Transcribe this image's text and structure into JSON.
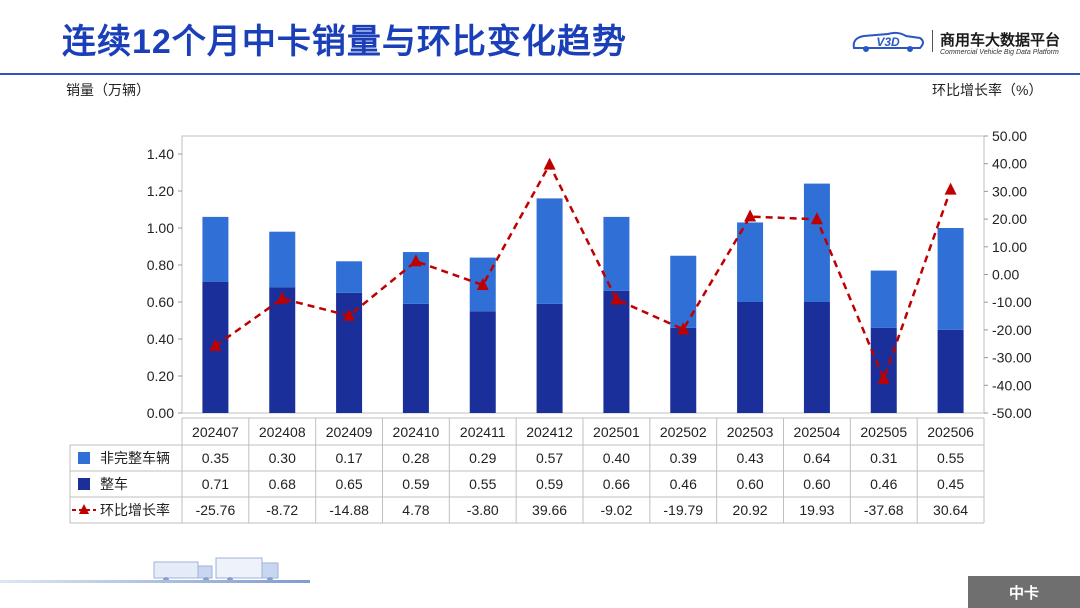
{
  "header": {
    "title": "连续12个月中卡销量与环比变化趋势",
    "logo_badge": "V3D",
    "logo_name": "商用车大数据平台",
    "logo_sub": "Commercial Vehicle Big Data Platform"
  },
  "footer": {
    "tag": "中卡"
  },
  "colors": {
    "incomplete": "#2f6fd6",
    "complete": "#1a2f99",
    "mom_line": "#c00000",
    "title": "#1a3fb8"
  },
  "chart_data": {
    "type": "bar",
    "stacked": true,
    "categories": [
      "202407",
      "202408",
      "202409",
      "202410",
      "202411",
      "202412",
      "202501",
      "202502",
      "202503",
      "202504",
      "202505",
      "202506"
    ],
    "ylabel": "销量（万辆）",
    "y2label": "环比增长率（%）",
    "ylim": [
      0,
      1.4
    ],
    "yticks": [
      "0.00",
      "0.20",
      "0.40",
      "0.60",
      "0.80",
      "1.00",
      "1.20",
      "1.40"
    ],
    "y2lim": [
      -50,
      50
    ],
    "y2ticks": [
      "-50.00",
      "-40.00",
      "-30.00",
      "-20.00",
      "-10.00",
      "0.00",
      "10.00",
      "20.00",
      "30.00",
      "40.00",
      "50.00"
    ],
    "series": [
      {
        "name": "非完整车辆",
        "kind": "bar",
        "values": [
          0.35,
          0.3,
          0.17,
          0.28,
          0.29,
          0.57,
          0.4,
          0.39,
          0.43,
          0.64,
          0.31,
          0.55
        ],
        "labels": [
          "0.35",
          "0.30",
          "0.17",
          "0.28",
          "0.29",
          "0.57",
          "0.40",
          "0.39",
          "0.43",
          "0.64",
          "0.31",
          "0.55"
        ]
      },
      {
        "name": "整车",
        "kind": "bar",
        "values": [
          0.71,
          0.68,
          0.65,
          0.59,
          0.55,
          0.59,
          0.66,
          0.46,
          0.6,
          0.6,
          0.46,
          0.45
        ],
        "labels": [
          "0.71",
          "0.68",
          "0.65",
          "0.59",
          "0.55",
          "0.59",
          "0.66",
          "0.46",
          "0.60",
          "0.60",
          "0.46",
          "0.45"
        ]
      },
      {
        "name": "环比增长率",
        "kind": "line",
        "axis": "right",
        "values": [
          -25.76,
          -8.72,
          -14.88,
          4.78,
          -3.8,
          39.66,
          -9.02,
          -19.79,
          20.92,
          19.93,
          -37.68,
          30.64
        ],
        "labels": [
          "-25.76",
          "-8.72",
          "-14.88",
          "4.78",
          "-3.80",
          "39.66",
          "-9.02",
          "-19.79",
          "20.92",
          "19.93",
          "-37.68",
          "30.64"
        ]
      }
    ],
    "grid": false,
    "legend": "data-table"
  }
}
